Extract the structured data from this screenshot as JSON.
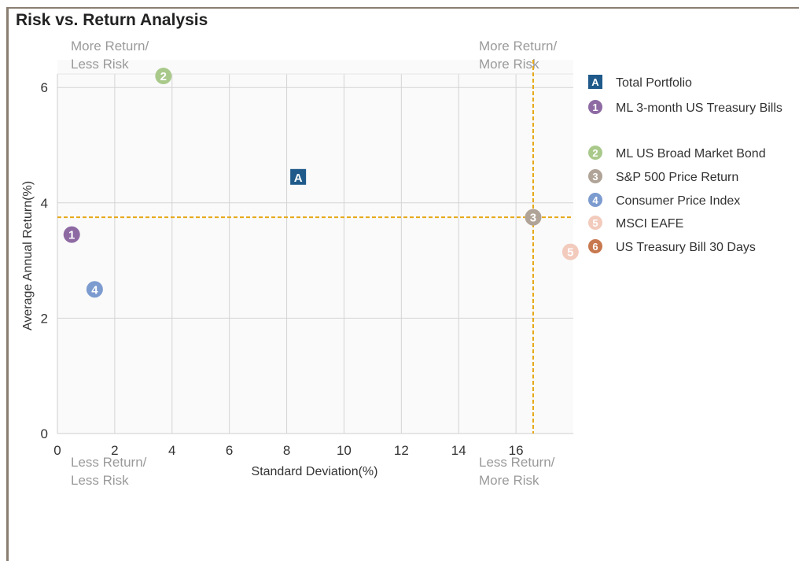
{
  "title": "Risk vs. Return Analysis",
  "colors": {
    "total_portfolio": "#1f5a8a",
    "ml_3m_treasury": "#8e6aa3",
    "ml_broad_bond": "#a9c98b",
    "sp500": "#b0a397",
    "cpi": "#7c9bcf",
    "msci_eafe": "#f2cbbd",
    "tbill_30": "#c8784f",
    "reference_line": "#e6a817",
    "grid": "#d4d4d4",
    "quadrant_text": "#9a9a9a"
  },
  "quadrant_labels": {
    "top_left": [
      "More Return/",
      "Less Risk"
    ],
    "top_right": [
      "More Return/",
      "More Risk"
    ],
    "bottom_left": [
      "Less Return/",
      "Less Risk"
    ],
    "bottom_right": [
      "Less Return/",
      "More Risk"
    ]
  },
  "chart_data": {
    "type": "scatter",
    "title": "Risk vs. Return Analysis",
    "xlabel": "Standard Deviation(%)",
    "ylabel": "Average Annual Return(%)",
    "xlim": [
      0,
      18
    ],
    "ylim": [
      0,
      6.2
    ],
    "xticks": [
      0,
      2,
      4,
      6,
      8,
      10,
      12,
      14,
      16
    ],
    "yticks": [
      0,
      2,
      4,
      6
    ],
    "grid": true,
    "legend_position": "right",
    "reference_lines": {
      "x": 16.6,
      "y": 3.75
    },
    "series": [
      {
        "name": "Total Portfolio",
        "marker": "A",
        "shape": "square",
        "color": "#1f5a8a",
        "x": 8.4,
        "y": 4.45
      },
      {
        "name": "ML 3-month US Treasury Bills",
        "marker": "1",
        "shape": "circle",
        "color": "#8e6aa3",
        "x": 0.5,
        "y": 3.45
      },
      {
        "name": "ML US Broad Market Bond",
        "marker": "2",
        "shape": "circle",
        "color": "#a9c98b",
        "x": 3.7,
        "y": 6.2
      },
      {
        "name": "S&P 500 Price Return",
        "marker": "3",
        "shape": "circle",
        "color": "#b0a397",
        "x": 16.6,
        "y": 3.75
      },
      {
        "name": "Consumer Price Index",
        "marker": "4",
        "shape": "circle",
        "color": "#7c9bcf",
        "x": 1.3,
        "y": 2.5
      },
      {
        "name": "MSCI EAFE",
        "marker": "5",
        "shape": "circle",
        "color": "#f2cbbd",
        "x": 17.9,
        "y": 3.15
      },
      {
        "name": "US Treasury Bill 30 Days",
        "marker": "6",
        "shape": "circle",
        "color": "#c8784f",
        "x": null,
        "y": null
      }
    ]
  }
}
